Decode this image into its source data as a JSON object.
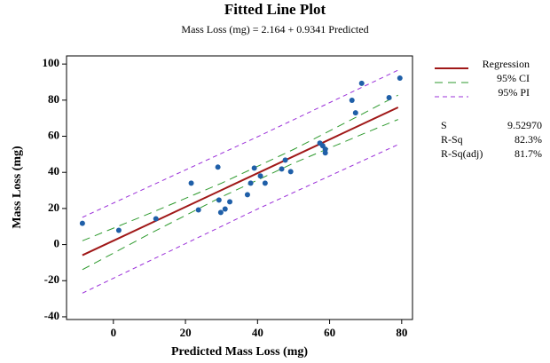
{
  "chart_data": {
    "type": "fitted-line",
    "title": "Fitted Line Plot",
    "subtitle": "Mass Loss (mg) = 2.164 + 0.9341 Predicted",
    "x_label": "Predicted Mass Loss (mg)",
    "y_label": "Mass Loss (mg)",
    "xlim": [
      -13,
      83
    ],
    "ylim": [
      -41.5,
      104.5
    ],
    "xticks": [
      0,
      20,
      40,
      60,
      80
    ],
    "yticks": [
      -40,
      -20,
      0,
      20,
      40,
      60,
      80,
      100
    ],
    "points": {
      "color": "#1f5fa8",
      "x": [
        -8.6,
        1.5,
        11.8,
        21.6,
        23.6,
        29,
        29.3,
        29.8,
        31,
        32.3,
        37.2,
        38.1,
        39.1,
        40.8,
        42.1,
        46.7,
        47.7,
        49.2,
        57.3,
        58.1,
        58.8,
        58.8,
        66.2,
        67.2,
        68.9,
        76.5,
        79.5
      ],
      "values": [
        11.8,
        7.9,
        14.3,
        34,
        19.2,
        42.9,
        24.7,
        17.8,
        19.7,
        23.7,
        27.6,
        34,
        42.4,
        38,
        34,
        41.9,
        46.8,
        40.4,
        56.2,
        54.7,
        50.8,
        52.8,
        79.9,
        73,
        89.3,
        81.4,
        92.2
      ]
    },
    "series": [
      {
        "name": "Regression",
        "color": "#a01818",
        "x": [
          -8.6,
          79
        ],
        "values": [
          -5.9,
          76
        ]
      },
      {
        "name": "95% CI",
        "color": "#2e9a2e",
        "x": [
          -8.6,
          10,
          30,
          50,
          70,
          79
        ],
        "upper": [
          2.1,
          17.2,
          34.0,
          52.7,
          73.3,
          82.8
        ],
        "lower": [
          -13.9,
          5.9,
          26.4,
          45.1,
          61.9,
          69.3
        ]
      },
      {
        "name": "95% PI",
        "color": "#9b30d9",
        "x": [
          -8.6,
          40,
          79
        ],
        "upper": [
          15.1,
          59.7,
          96.6
        ],
        "lower": [
          -26.9,
          19.7,
          55.4
        ]
      }
    ],
    "stats": [
      {
        "label": "S",
        "value": "9.52970"
      },
      {
        "label": "R-Sq",
        "value": "82.3%"
      },
      {
        "label": "R-Sq(adj)",
        "value": "81.7%"
      }
    ]
  }
}
